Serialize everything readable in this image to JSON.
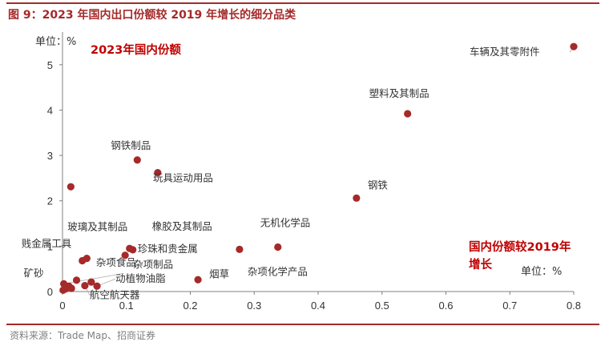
{
  "header": {
    "title": "图 9：2023 年国内出口份额较 2019 年增长的细分品类"
  },
  "footer": {
    "source": "资料来源：Trade Map、招商证券"
  },
  "chart_data": {
    "type": "scatter",
    "title": "图 9：2023 年国内出口份额较 2019 年增长的细分品类",
    "y_unit_label": "单位：%",
    "y_annotation": "2023年国内份额",
    "x_annotation_line1": "国内份额较2019年",
    "x_annotation_line2": "增长",
    "x_unit_label": "单位：%",
    "xlim": [
      0,
      0.8
    ],
    "ylim": [
      0,
      5.5
    ],
    "xticks": [
      "0",
      "0.1",
      "0.2",
      "0.3",
      "0.4",
      "0.5",
      "0.6",
      "0.7",
      "0.8"
    ],
    "yticks": [
      "0",
      "1",
      "2",
      "3",
      "4",
      "5"
    ],
    "marker_color": "#a52a2a",
    "annotation_color": "#c00000",
    "points": [
      {
        "x": 0.8,
        "y": 5.4,
        "label": "车辆及其零附件"
      },
      {
        "x": 0.54,
        "y": 3.92,
        "label": "塑料及其制品"
      },
      {
        "x": 0.46,
        "y": 2.06,
        "label": "钢铁"
      },
      {
        "x": 0.117,
        "y": 2.9,
        "label": "钢铁制品"
      },
      {
        "x": 0.149,
        "y": 2.62,
        "label": "玩具运动用品"
      },
      {
        "x": 0.013,
        "y": 2.31,
        "label": ""
      },
      {
        "x": 0.337,
        "y": 0.98,
        "label": "无机化学品"
      },
      {
        "x": 0.277,
        "y": 0.93,
        "label": "杂项化学产品"
      },
      {
        "x": 0.105,
        "y": 0.95,
        "label": "橡胶及其制品"
      },
      {
        "x": 0.11,
        "y": 0.92,
        "label": "珍珠和贵金属"
      },
      {
        "x": 0.098,
        "y": 0.8,
        "label": "杂项制品"
      },
      {
        "x": 0.038,
        "y": 0.73,
        "label": "玻璃及其制品"
      },
      {
        "x": 0.031,
        "y": 0.68,
        "label": "贱金属工具"
      },
      {
        "x": 0.212,
        "y": 0.26,
        "label": "烟草"
      },
      {
        "x": 0.045,
        "y": 0.21,
        "label": "杂项食品"
      },
      {
        "x": 0.054,
        "y": 0.12,
        "label": "动植物油脂"
      },
      {
        "x": 0.022,
        "y": 0.25,
        "label": ""
      },
      {
        "x": 0.035,
        "y": 0.13,
        "label": "航空航天器"
      },
      {
        "x": 0.002,
        "y": 0.17,
        "label": "矿砂"
      },
      {
        "x": 0.01,
        "y": 0.12,
        "label": ""
      },
      {
        "x": 0.005,
        "y": 0.06,
        "label": ""
      },
      {
        "x": 0.014,
        "y": 0.07,
        "label": ""
      },
      {
        "x": 0.001,
        "y": 0.03,
        "label": ""
      }
    ]
  }
}
